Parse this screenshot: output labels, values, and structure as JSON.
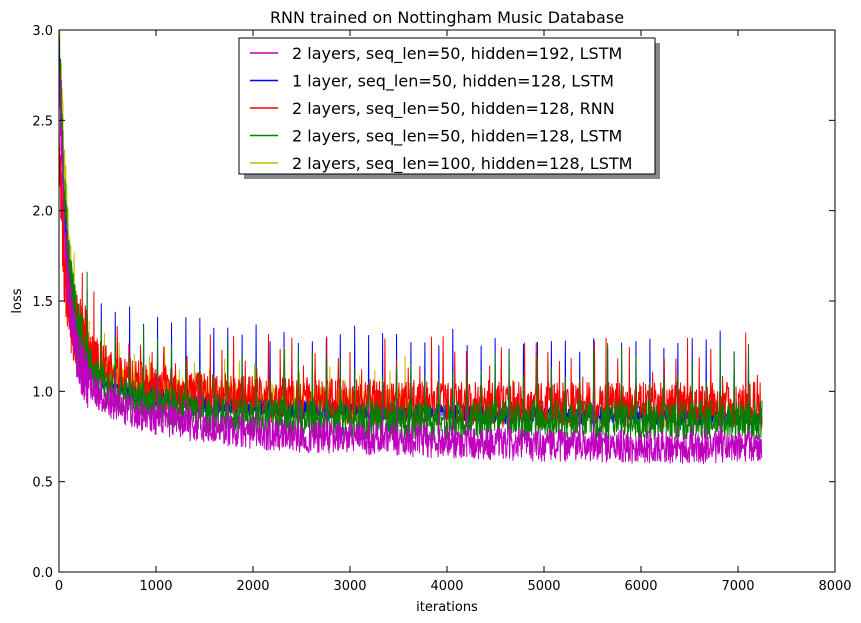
{
  "chart_data": {
    "type": "line",
    "title": "RNN trained on Nottingham Music Database",
    "xlabel": "iterations",
    "ylabel": "loss",
    "xlim": [
      0,
      8000
    ],
    "ylim": [
      0.0,
      3.0
    ],
    "xticks": [
      "0",
      "1000",
      "2000",
      "3000",
      "4000",
      "5000",
      "6000",
      "7000",
      "8000"
    ],
    "yticks": [
      "0.0",
      "0.5",
      "1.0",
      "1.5",
      "2.0",
      "2.5",
      "3.0"
    ],
    "grid": false,
    "legend_position": "top-center",
    "series": [
      {
        "name": "2 layers, seq_len=50, hidden=192, LSTM",
        "color": "#bf00bf",
        "x": [
          0,
          50,
          100,
          150,
          200,
          300,
          400,
          500,
          700,
          1000,
          1500,
          2000,
          2500,
          3000,
          3500,
          4000,
          4500,
          5000,
          5500,
          6000,
          6500,
          7000,
          7250
        ],
        "y": [
          2.85,
          1.95,
          1.55,
          1.32,
          1.18,
          1.06,
          0.99,
          0.95,
          0.9,
          0.85,
          0.8,
          0.77,
          0.75,
          0.74,
          0.73,
          0.72,
          0.71,
          0.7,
          0.7,
          0.69,
          0.69,
          0.69,
          0.69
        ]
      },
      {
        "name": "1 layer, seq_len=50, hidden=128, LSTM",
        "color": "#0000ff",
        "x": [
          0,
          50,
          100,
          150,
          200,
          300,
          400,
          500,
          700,
          1000,
          1500,
          2000,
          2500,
          3000,
          3500,
          4000,
          4500,
          5000,
          5500,
          6000,
          6500,
          7000,
          7250
        ],
        "y": [
          2.95,
          2.05,
          1.65,
          1.42,
          1.28,
          1.15,
          1.08,
          1.04,
          1.0,
          0.96,
          0.93,
          0.91,
          0.9,
          0.89,
          0.88,
          0.88,
          0.87,
          0.87,
          0.87,
          0.87,
          0.86,
          0.86,
          0.86
        ]
      },
      {
        "name": "2 layers, seq_len=50, hidden=128, RNN",
        "color": "#ff0000",
        "x": [
          0,
          50,
          100,
          150,
          200,
          300,
          400,
          500,
          700,
          1000,
          1500,
          2000,
          2500,
          3000,
          3500,
          4000,
          4500,
          5000,
          5500,
          6000,
          6500,
          7000,
          7250
        ],
        "y": [
          2.4,
          1.7,
          1.5,
          1.38,
          1.3,
          1.22,
          1.16,
          1.12,
          1.07,
          1.02,
          0.98,
          0.96,
          0.95,
          0.94,
          0.93,
          0.93,
          0.93,
          0.92,
          0.92,
          0.92,
          0.92,
          0.92,
          0.92
        ]
      },
      {
        "name": "2 layers, seq_len=50, hidden=128, LSTM",
        "color": "#008000",
        "x": [
          0,
          50,
          100,
          150,
          200,
          300,
          400,
          500,
          700,
          1000,
          1500,
          2000,
          2500,
          3000,
          3500,
          4000,
          4500,
          5000,
          5500,
          6000,
          6500,
          7000,
          7250
        ],
        "y": [
          2.95,
          2.1,
          1.7,
          1.45,
          1.3,
          1.15,
          1.07,
          1.02,
          0.97,
          0.92,
          0.88,
          0.86,
          0.85,
          0.84,
          0.84,
          0.84,
          0.84,
          0.84,
          0.84,
          0.84,
          0.84,
          0.84,
          0.84
        ]
      },
      {
        "name": "2 layers, seq_len=100, hidden=128, LSTM",
        "color": "#bfbf00",
        "x": [
          0,
          50,
          100,
          150,
          200,
          300,
          400,
          500,
          700,
          1000,
          1500,
          2000,
          2500,
          3000,
          3300,
          3600
        ],
        "y": [
          3.0,
          2.3,
          1.8,
          1.5,
          1.35,
          1.2,
          1.13,
          1.09,
          1.04,
          1.0,
          0.97,
          0.95,
          0.94,
          0.93,
          0.93,
          0.93
        ]
      }
    ]
  }
}
